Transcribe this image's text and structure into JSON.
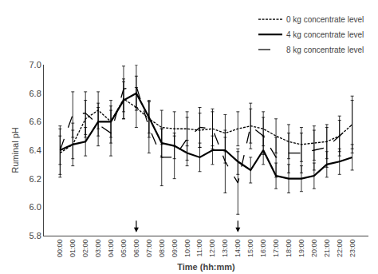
{
  "chart_data": {
    "type": "line",
    "xlabel": "Time (hh:mm)",
    "ylabel": "Ruminal pH",
    "categories": [
      "00:00",
      "01:00",
      "02:00",
      "03:00",
      "04:00",
      "05:00",
      "06:00",
      "07:00",
      "08:00",
      "09:00",
      "10:00",
      "11:00",
      "12:00",
      "13:00",
      "14:00",
      "15:00",
      "16:00",
      "17:00",
      "18:00",
      "19:00",
      "20:00",
      "21:00",
      "22:00",
      "23:00"
    ],
    "series": [
      {
        "name": "0 kg concentrate level",
        "color": "#000000",
        "line_style": "short_dash",
        "values": [
          6.38,
          6.44,
          6.62,
          6.68,
          6.6,
          6.76,
          6.7,
          6.62,
          6.56,
          6.55,
          6.55,
          6.54,
          6.55,
          6.52,
          6.55,
          6.57,
          6.55,
          6.5,
          6.46,
          6.44,
          6.45,
          6.46,
          6.5,
          6.58
        ],
        "error": [
          0.17,
          0.15,
          0.13,
          0.13,
          0.15,
          0.14,
          0.14,
          0.13,
          0.12,
          0.12,
          0.12,
          0.12,
          0.12,
          0.13,
          0.12,
          0.12,
          0.12,
          0.12,
          0.12,
          0.12,
          0.12,
          0.12,
          0.11,
          0.17
        ]
      },
      {
        "name": "4 kg concentrate level",
        "color": "#000000",
        "line_style": "solid",
        "values": [
          6.4,
          6.44,
          6.46,
          6.6,
          6.6,
          6.75,
          6.8,
          6.63,
          6.45,
          6.43,
          6.38,
          6.35,
          6.4,
          6.4,
          6.32,
          6.26,
          6.4,
          6.22,
          6.2,
          6.2,
          6.22,
          6.3,
          6.32,
          6.35
        ],
        "error": [
          0.1,
          0.1,
          0.1,
          0.1,
          0.11,
          0.13,
          0.12,
          0.11,
          0.1,
          0.09,
          0.09,
          0.1,
          0.1,
          0.09,
          0.09,
          0.09,
          0.1,
          0.09,
          0.1,
          0.09,
          0.09,
          0.09,
          0.09,
          0.09
        ]
      },
      {
        "name": "8 kg concentrate level",
        "color": "#000000",
        "line_style": "long_dash",
        "values": [
          6.4,
          6.65,
          6.66,
          6.58,
          6.52,
          6.83,
          6.85,
          6.56,
          6.35,
          6.35,
          6.48,
          6.56,
          6.55,
          6.32,
          6.17,
          6.57,
          6.5,
          6.35,
          6.38,
          6.38,
          6.4,
          6.42,
          6.5,
          6.58
        ],
        "error": [
          0.17,
          0.16,
          0.15,
          0.15,
          0.16,
          0.16,
          0.15,
          0.18,
          0.2,
          0.15,
          0.15,
          0.14,
          0.14,
          0.22,
          0.22,
          0.16,
          0.13,
          0.14,
          0.14,
          0.14,
          0.14,
          0.14,
          0.14,
          0.2
        ]
      }
    ],
    "arrows": [
      "06:00",
      "14:00"
    ],
    "ylim": [
      5.8,
      7.0
    ],
    "yticks": [
      5.8,
      {
        "value": 6.0,
        "label": "6.0"
      },
      6.2,
      6.4,
      6.6,
      6.8,
      {
        "value": 7.0,
        "label": "7.0"
      }
    ],
    "grid": false,
    "legend": "upper right"
  }
}
